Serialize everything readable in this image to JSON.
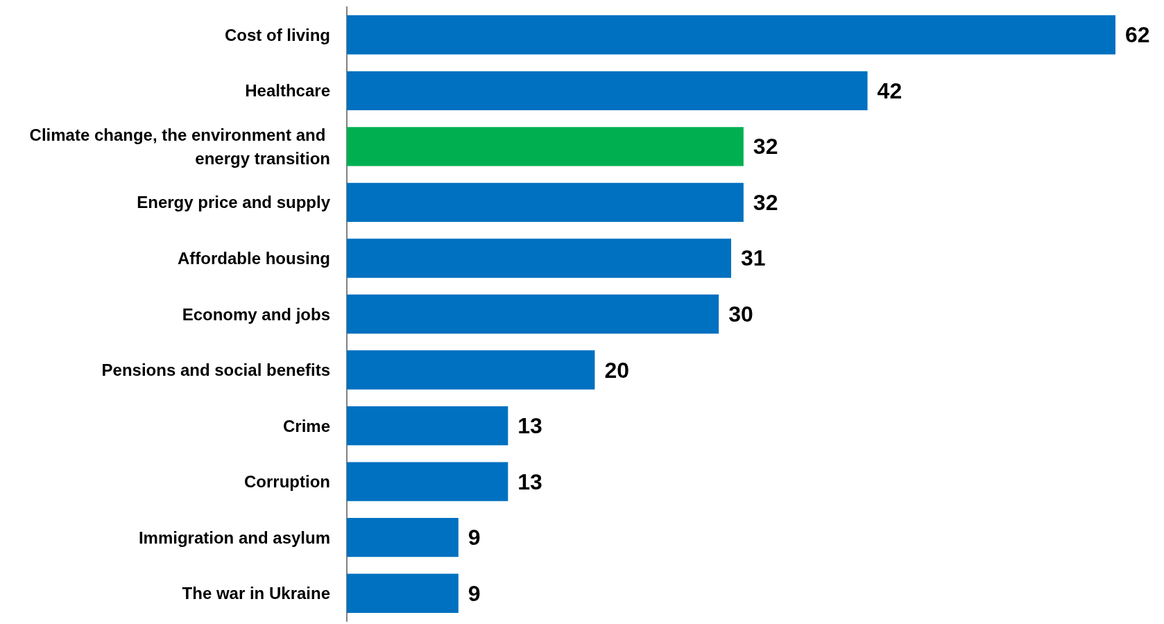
{
  "chart_data": {
    "type": "bar",
    "orientation": "horizontal",
    "data_labels": true,
    "categories": [
      "Cost of living",
      "Healthcare",
      "Climate change, the environment and energy transition",
      "Energy price and supply",
      "Affordable housing",
      "Economy and jobs",
      "Pensions and social benefits",
      "Crime",
      "Corruption",
      "Immigration and asylum",
      "The war in Ukraine"
    ],
    "values": [
      62,
      42,
      32,
      32,
      31,
      30,
      20,
      13,
      13,
      9,
      9
    ],
    "colors": [
      "#0070c0",
      "#0070c0",
      "#00b050",
      "#0070c0",
      "#0070c0",
      "#0070c0",
      "#0070c0",
      "#0070c0",
      "#0070c0",
      "#0070c0",
      "#0070c0"
    ]
  }
}
